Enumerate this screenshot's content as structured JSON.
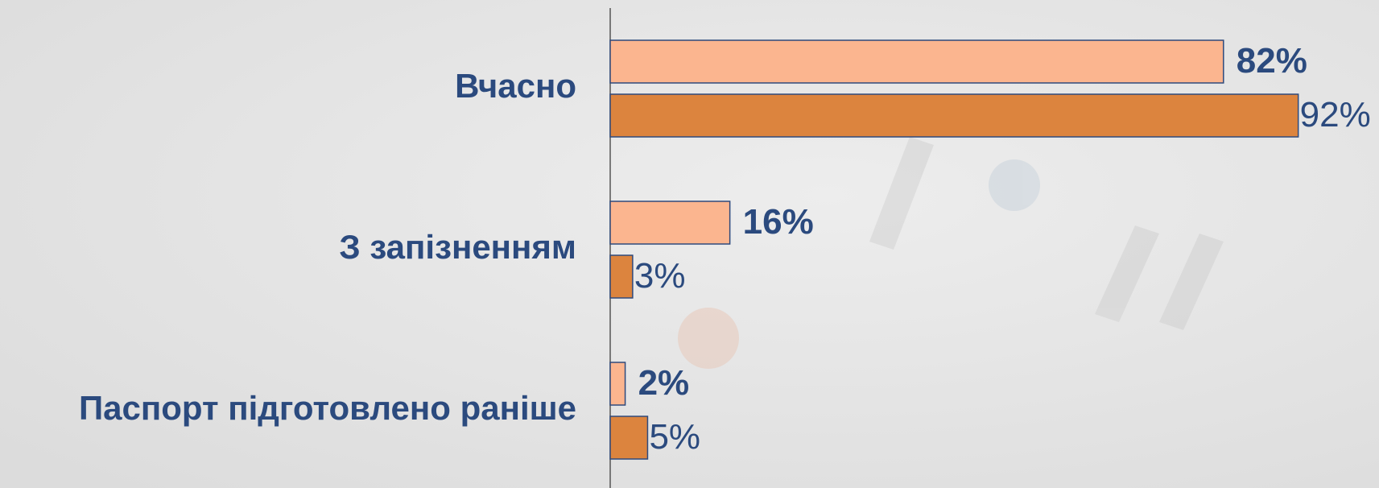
{
  "chart_data": {
    "type": "bar",
    "orientation": "horizontal",
    "categories": [
      "Вчасно",
      "З запізненням",
      "Паспорт підготовлено раніше"
    ],
    "series": [
      {
        "color": "#fbb58f",
        "values": [
          82,
          16,
          2
        ],
        "value_labels": [
          "82%",
          "16%",
          "2%"
        ]
      },
      {
        "color": "#dc843e",
        "values": [
          92,
          3,
          5
        ],
        "value_labels": [
          "92%",
          "3%",
          "5%"
        ]
      }
    ],
    "xlim": [
      0,
      100
    ]
  }
}
